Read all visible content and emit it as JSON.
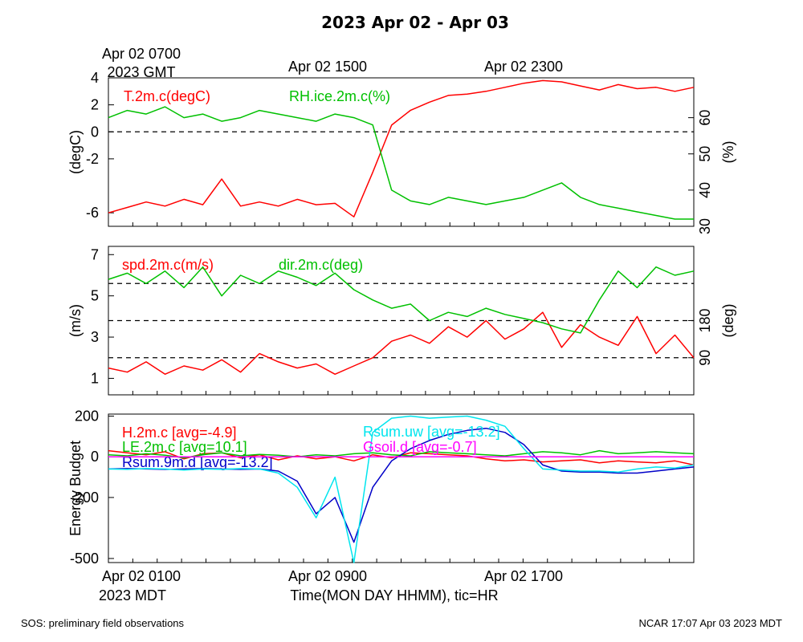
{
  "header": {
    "title": "2023 Apr 02 - Apr 03",
    "gmt_ticks": [
      "Apr 02 0700",
      "Apr 02 1500",
      "Apr 02 2300"
    ],
    "gmt_year": "2023 GMT"
  },
  "footer": {
    "left_note": "SOS: preliminary field observations",
    "right_note": "NCAR 17:07 Apr 03 2023 MDT",
    "xaxis_title": "Time(MON DAY HHMM), tic=HR",
    "xtick_labels": [
      "Apr 02 0100",
      "Apr 02 0900",
      "Apr 02 1700"
    ],
    "xaxis_year": "2023 MDT"
  },
  "colors": {
    "red": "#ff0000",
    "green": "#00c000",
    "blue": "#0000c8",
    "cyan": "#00e5ee",
    "magenta": "#ff00ff",
    "black": "#000000"
  },
  "chart_data": [
    {
      "type": "line",
      "panel": "temperature-humidity",
      "xlabel": "",
      "ylabel": "(degC)",
      "ylabel_right": "(%)",
      "ylim": [
        -7,
        4
      ],
      "ylim_right": [
        30,
        71
      ],
      "yticks": [
        -6,
        -2,
        0,
        2,
        4
      ],
      "yticks_right": [
        30,
        40,
        50,
        60
      ],
      "reference_lines": [
        0
      ],
      "grid": false,
      "series": [
        {
          "name": "T.2m.c(degC)",
          "axis": "left",
          "color": "#ff0000",
          "x": [
            0,
            1,
            2,
            3,
            4,
            5,
            6,
            7,
            8,
            9,
            10,
            11,
            12,
            13,
            14,
            15,
            16,
            17,
            18,
            19,
            20,
            21,
            22,
            23,
            24,
            25,
            26,
            27,
            28,
            29,
            30,
            31
          ],
          "values": [
            -6.0,
            -5.6,
            -5.2,
            -5.5,
            -5.0,
            -5.4,
            -3.5,
            -5.5,
            -5.2,
            -5.5,
            -5.0,
            -5.4,
            -5.3,
            -6.3,
            -3.0,
            0.5,
            1.6,
            2.2,
            2.7,
            2.8,
            3.0,
            3.3,
            3.6,
            3.8,
            3.7,
            3.4,
            3.1,
            3.5,
            3.2,
            3.3,
            3.0,
            3.3
          ]
        },
        {
          "name": "RH.ice.2m.c(%)",
          "axis": "right",
          "color": "#00c000",
          "x": [
            0,
            1,
            2,
            3,
            4,
            5,
            6,
            7,
            8,
            9,
            10,
            11,
            12,
            13,
            14,
            15,
            16,
            17,
            18,
            19,
            20,
            21,
            22,
            23,
            24,
            25,
            26,
            27,
            28,
            29,
            30,
            31
          ],
          "values": [
            60,
            62,
            61,
            63,
            60,
            61,
            59,
            60,
            62,
            61,
            60,
            59,
            61,
            60,
            58,
            40,
            37,
            36,
            38,
            37,
            36,
            37,
            38,
            40,
            42,
            38,
            36,
            35,
            34,
            33,
            32,
            32
          ]
        }
      ]
    },
    {
      "type": "line",
      "panel": "wind",
      "xlabel": "",
      "ylabel": "(m/s)",
      "ylabel_right": "(deg)",
      "ylim": [
        0.2,
        7.4
      ],
      "ylim_right": [
        0,
        360
      ],
      "yticks": [
        1,
        3,
        5,
        7
      ],
      "yticks_right": [
        90,
        180
      ],
      "reference_lines_right": [
        90,
        180,
        270
      ],
      "grid": false,
      "series": [
        {
          "name": "spd.2m.c(m/s)",
          "axis": "left",
          "color": "#ff0000",
          "x": [
            0,
            1,
            2,
            3,
            4,
            5,
            6,
            7,
            8,
            9,
            10,
            11,
            12,
            13,
            14,
            15,
            16,
            17,
            18,
            19,
            20,
            21,
            22,
            23,
            24,
            25,
            26,
            27,
            28,
            29,
            30,
            31
          ],
          "values": [
            1.5,
            1.3,
            1.8,
            1.2,
            1.6,
            1.4,
            1.9,
            1.3,
            2.2,
            1.8,
            1.5,
            1.7,
            1.2,
            1.6,
            2.0,
            2.8,
            3.1,
            2.7,
            3.5,
            3.0,
            3.8,
            2.9,
            3.4,
            4.2,
            2.5,
            3.6,
            3.0,
            2.6,
            4.0,
            2.2,
            3.1,
            2.0
          ]
        },
        {
          "name": "dir.2m.c(deg)",
          "axis": "right",
          "color": "#00c000",
          "x": [
            0,
            1,
            2,
            3,
            4,
            5,
            6,
            7,
            8,
            9,
            10,
            11,
            12,
            13,
            14,
            15,
            16,
            17,
            18,
            19,
            20,
            21,
            22,
            23,
            24,
            25,
            26,
            27,
            28,
            29,
            30,
            31
          ],
          "values": [
            280,
            295,
            270,
            300,
            260,
            310,
            240,
            290,
            270,
            300,
            285,
            265,
            295,
            255,
            230,
            210,
            220,
            180,
            200,
            190,
            210,
            195,
            185,
            175,
            160,
            150,
            230,
            300,
            260,
            310,
            290,
            300
          ]
        }
      ]
    },
    {
      "type": "line",
      "panel": "energy-budget",
      "xlabel": "Time(MON DAY HHMM), tic=HR",
      "ylabel": "Energy Budget",
      "ylim": [
        -520,
        210
      ],
      "yticks": [
        -500,
        -200,
        0,
        200
      ],
      "reference_lines": [
        0
      ],
      "grid": false,
      "series": [
        {
          "name": "H.2m.c [avg=-4.9]",
          "color": "#ff0000",
          "x": [
            0,
            1,
            2,
            3,
            4,
            5,
            6,
            7,
            8,
            9,
            10,
            11,
            12,
            13,
            14,
            15,
            16,
            17,
            18,
            19,
            20,
            21,
            22,
            23,
            24,
            25,
            26,
            27,
            28,
            29,
            30,
            31
          ],
          "values": [
            30,
            20,
            10,
            25,
            -10,
            15,
            20,
            -5,
            10,
            -15,
            5,
            -10,
            0,
            -20,
            10,
            -5,
            20,
            15,
            10,
            5,
            -10,
            -20,
            -15,
            -25,
            -20,
            -15,
            -30,
            -20,
            -25,
            -30,
            -20,
            -40
          ]
        },
        {
          "name": "LE.2m.c [avg=10.1]",
          "color": "#00c000",
          "x": [
            0,
            1,
            2,
            3,
            4,
            5,
            6,
            7,
            8,
            9,
            10,
            11,
            12,
            13,
            14,
            15,
            16,
            17,
            18,
            19,
            20,
            21,
            22,
            23,
            24,
            25,
            26,
            27,
            28,
            29,
            30,
            31
          ],
          "values": [
            10,
            5,
            15,
            8,
            -5,
            10,
            20,
            5,
            12,
            8,
            0,
            10,
            5,
            15,
            20,
            10,
            5,
            25,
            20,
            15,
            10,
            5,
            15,
            25,
            20,
            10,
            30,
            15,
            20,
            25,
            20,
            15
          ]
        },
        {
          "name": "Rsum.9m.d [avg=-13.2]",
          "color": "#0000c8",
          "x": [
            0,
            1,
            2,
            3,
            4,
            5,
            6,
            7,
            8,
            9,
            10,
            11,
            12,
            13,
            14,
            15,
            16,
            17,
            18,
            19,
            20,
            21,
            22,
            23,
            24,
            25,
            26,
            27,
            28,
            29,
            30,
            31
          ],
          "values": [
            -60,
            -58,
            -60,
            -62,
            -60,
            -58,
            -60,
            -62,
            -60,
            -70,
            -120,
            -280,
            -200,
            -420,
            -150,
            -20,
            40,
            80,
            110,
            130,
            140,
            120,
            60,
            -40,
            -70,
            -75,
            -75,
            -80,
            -80,
            -70,
            -60,
            -50
          ]
        },
        {
          "name": "Rsum.uw [avg=-13.2]",
          "color": "#00e5ee",
          "x": [
            0,
            1,
            2,
            3,
            4,
            5,
            6,
            7,
            8,
            9,
            10,
            11,
            12,
            13,
            14,
            15,
            16,
            17,
            18,
            19,
            20,
            21,
            22,
            23,
            24,
            25,
            26,
            27,
            28,
            29,
            30,
            31
          ],
          "values": [
            -60,
            -62,
            -58,
            -60,
            -65,
            -60,
            -62,
            -58,
            -60,
            -80,
            -150,
            -300,
            -100,
            -520,
            120,
            190,
            200,
            190,
            195,
            200,
            180,
            150,
            40,
            -60,
            -65,
            -70,
            -70,
            -75,
            -60,
            -50,
            -55,
            -40
          ]
        },
        {
          "name": "Gsoil.d [avg=-0.7]",
          "color": "#ff00ff",
          "x": [
            0,
            1,
            2,
            3,
            4,
            5,
            6,
            7,
            8,
            9,
            10,
            11,
            12,
            13,
            14,
            15,
            16,
            17,
            18,
            19,
            20,
            21,
            22,
            23,
            24,
            25,
            26,
            27,
            28,
            29,
            30,
            31
          ],
          "values": [
            0,
            0,
            0,
            0,
            0,
            0,
            0,
            0,
            0,
            0,
            0,
            0,
            0,
            0,
            0,
            0,
            0,
            0,
            0,
            0,
            0,
            0,
            0,
            0,
            0,
            0,
            0,
            0,
            0,
            0,
            0,
            0
          ]
        }
      ]
    }
  ]
}
